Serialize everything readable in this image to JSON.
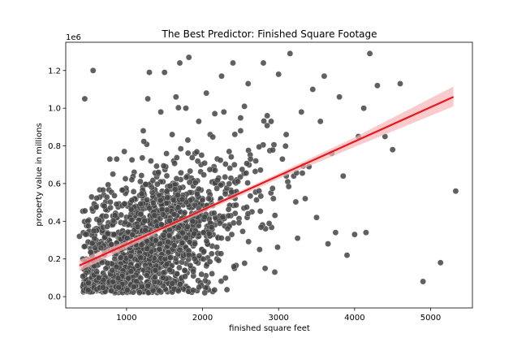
{
  "chart_data": {
    "type": "scatter",
    "title": "The Best Predictor: Finished Square Footage",
    "xlabel": "finished square feet",
    "ylabel": "property value in millions",
    "y_offset_label": "1e6",
    "xlim": [
      200,
      5550
    ],
    "ylim": [
      -60000,
      1350000
    ],
    "x_ticks": [
      1000,
      2000,
      3000,
      4000,
      5000
    ],
    "x_tick_labels": [
      "1000",
      "2000",
      "3000",
      "4000",
      "5000"
    ],
    "y_ticks": [
      0,
      200000,
      400000,
      600000,
      800000,
      1000000,
      1200000
    ],
    "y_tick_labels": [
      "0.0",
      "0.2",
      "0.4",
      "0.6",
      "0.8",
      "1.0",
      "1.2"
    ],
    "grid": false,
    "legend": "none",
    "colors": {
      "points": "#444444",
      "regression_line": "#e41a1c",
      "confidence_band": "#f8b4b8"
    },
    "regression": {
      "x": [
        380,
        5300
      ],
      "y": [
        165000,
        1060000
      ],
      "band": [
        {
          "x": 380,
          "low": 135000,
          "high": 195000
        },
        {
          "x": 1500,
          "low": 355000,
          "high": 375000
        },
        {
          "x": 3000,
          "low": 625000,
          "high": 655000
        },
        {
          "x": 4000,
          "low": 795000,
          "high": 845000
        },
        {
          "x": 5300,
          "low": 1010000,
          "high": 1115000
        }
      ]
    },
    "series": [
      {
        "points": [
          [
            380,
            320000
          ],
          [
            450,
            1050000
          ],
          [
            560,
            1200000
          ],
          [
            460,
            80000
          ],
          [
            500,
            170000
          ],
          [
            600,
            300000
          ],
          [
            620,
            250000
          ],
          [
            680,
            340000
          ],
          [
            700,
            540000
          ],
          [
            750,
            460000
          ],
          [
            780,
            730000
          ],
          [
            820,
            650000
          ],
          [
            850,
            420000
          ],
          [
            880,
            320000
          ],
          [
            900,
            270000
          ],
          [
            920,
            180000
          ],
          [
            950,
            90000
          ],
          [
            970,
            770000
          ],
          [
            1000,
            560000
          ],
          [
            1020,
            380000
          ],
          [
            1050,
            240000
          ],
          [
            1080,
            120000
          ],
          [
            1100,
            660000
          ],
          [
            1120,
            480000
          ],
          [
            1150,
            300000
          ],
          [
            1180,
            200000
          ],
          [
            1200,
            60000
          ],
          [
            1220,
            880000
          ],
          [
            1250,
            350000
          ],
          [
            1280,
            1050000
          ],
          [
            1300,
            1190000
          ],
          [
            1320,
            720000
          ],
          [
            1350,
            530000
          ],
          [
            1380,
            410000
          ],
          [
            1400,
            280000
          ],
          [
            1420,
            150000
          ],
          [
            1450,
            980000
          ],
          [
            1480,
            610000
          ],
          [
            1500,
            1190000
          ],
          [
            1520,
            440000
          ],
          [
            1550,
            320000
          ],
          [
            1580,
            90000
          ],
          [
            1600,
            860000
          ],
          [
            1620,
            720000
          ],
          [
            1650,
            1060000
          ],
          [
            1680,
            560000
          ],
          [
            1700,
            1240000
          ],
          [
            1720,
            390000
          ],
          [
            1750,
            250000
          ],
          [
            1780,
            1000000
          ],
          [
            1800,
            640000
          ],
          [
            1820,
            1270000
          ],
          [
            1850,
            470000
          ],
          [
            1880,
            110000
          ],
          [
            1900,
            760000
          ],
          [
            1950,
            930000
          ],
          [
            2000,
            520000
          ],
          [
            2020,
            340000
          ],
          [
            2050,
            1080000
          ],
          [
            2100,
            860000
          ],
          [
            2150,
            690000
          ],
          [
            2180,
            410000
          ],
          [
            2200,
            230000
          ],
          [
            2250,
            1170000
          ],
          [
            2280,
            980000
          ],
          [
            2300,
            560000
          ],
          [
            2350,
            770000
          ],
          [
            2400,
            1240000
          ],
          [
            2420,
            150000
          ],
          [
            2450,
            620000
          ],
          [
            2500,
            880000
          ],
          [
            2550,
            1010000
          ],
          [
            2600,
            1130000
          ],
          [
            2650,
            450000
          ],
          [
            2700,
            720000
          ],
          [
            2750,
            250000
          ],
          [
            2800,
            1240000
          ],
          [
            2850,
            960000
          ],
          [
            2900,
            550000
          ],
          [
            2950,
            130000
          ],
          [
            3000,
            1180000
          ],
          [
            3050,
            730000
          ],
          [
            3100,
            860000
          ],
          [
            3150,
            1290000
          ],
          [
            3200,
            640000
          ],
          [
            3250,
            310000
          ],
          [
            3300,
            980000
          ],
          [
            3350,
            520000
          ],
          [
            3400,
            690000
          ],
          [
            3450,
            1100000
          ],
          [
            3500,
            420000
          ],
          [
            3550,
            930000
          ],
          [
            3600,
            1170000
          ],
          [
            3650,
            280000
          ],
          [
            3700,
            760000
          ],
          [
            3750,
            340000
          ],
          [
            3800,
            1060000
          ],
          [
            3850,
            640000
          ],
          [
            3900,
            220000
          ],
          [
            4000,
            330000
          ],
          [
            4050,
            850000
          ],
          [
            4120,
            1000000
          ],
          [
            4150,
            340000
          ],
          [
            4200,
            1290000
          ],
          [
            4300,
            1120000
          ],
          [
            4400,
            850000
          ],
          [
            4500,
            780000
          ],
          [
            4600,
            1130000
          ],
          [
            4900,
            80000
          ],
          [
            5130,
            180000
          ],
          [
            5330,
            560000
          ]
        ]
      }
    ]
  }
}
